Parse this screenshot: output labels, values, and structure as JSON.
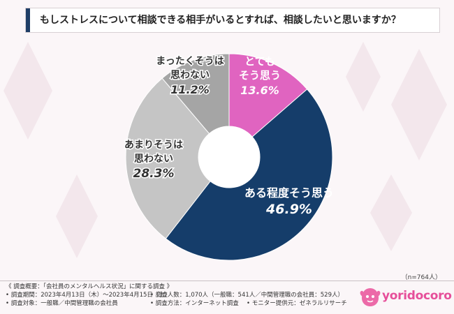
{
  "title": "もしストレスについて相談できる相手がいるとすれば、相談したいと思いますか？",
  "chart_data": {
    "type": "pie",
    "donut": true,
    "title": "もしストレスについて相談できる相手がいるとすれば、相談したいと思いますか？",
    "start": "12 o'clock, clockwise",
    "slices": [
      {
        "label_lines": [
          "とても",
          "そう思う"
        ],
        "value": 13.6,
        "value_text": "13.6%",
        "color": "#e064c0"
      },
      {
        "label_lines": [
          "ある程度そう思う"
        ],
        "value": 46.9,
        "value_text": "46.9%",
        "color": "#153d6a"
      },
      {
        "label_lines": [
          "あまりそうは",
          "思わない"
        ],
        "value": 28.3,
        "value_text": "28.3%",
        "color": "#c5c5c5"
      },
      {
        "label_lines": [
          "まったくそうは",
          "思わない"
        ],
        "value": 11.2,
        "value_text": "11.2%",
        "color": "#a5a5a5"
      }
    ]
  },
  "sample_note": "（n=764人）",
  "survey": {
    "overview": "《 調査概要：「会社員のメンタルヘルス状況」に関する調査 》",
    "period": "• 調査期間：2023年4月13日（木）～2023年4月15日（土）",
    "respondents": "• 調査人数：1,070人（一般職：541人／中間管理職の会社員：529人）",
    "target": "• 調査対象：一般職／中間管理職の会社員",
    "method": "• 調査方法：インターネット調査",
    "provider": "• モニター提供元：ゼネラルリサーチ"
  },
  "logo": {
    "text": "yoridocoro"
  },
  "colors": {
    "accent": "#1f3e66",
    "brand": "#e64f9a"
  }
}
